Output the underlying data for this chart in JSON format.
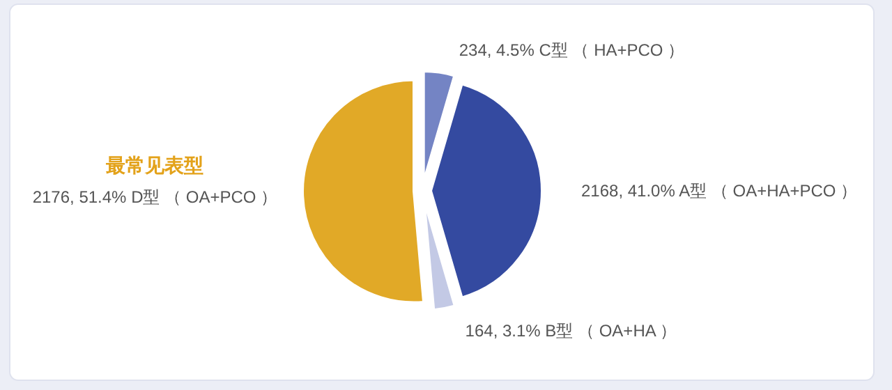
{
  "chart_data": {
    "type": "pie",
    "categories": [
      "C型 （ HA+PCO ）",
      "A型 （ OA+HA+PCO ）",
      "B型 （ OA+HA ）",
      "D型 （ OA+PCO ）"
    ],
    "values": [
      4.5,
      41.0,
      3.1,
      51.4
    ],
    "value_labels": [
      "234, 4.5%",
      "2168, 41.0%",
      "164, 3.1%",
      "2176, 51.4%"
    ],
    "colors": [
      "#7484c4",
      "#344aa0",
      "#c3c9e5",
      "#e1a927"
    ],
    "annotations": [
      "最常见表型"
    ]
  }
}
